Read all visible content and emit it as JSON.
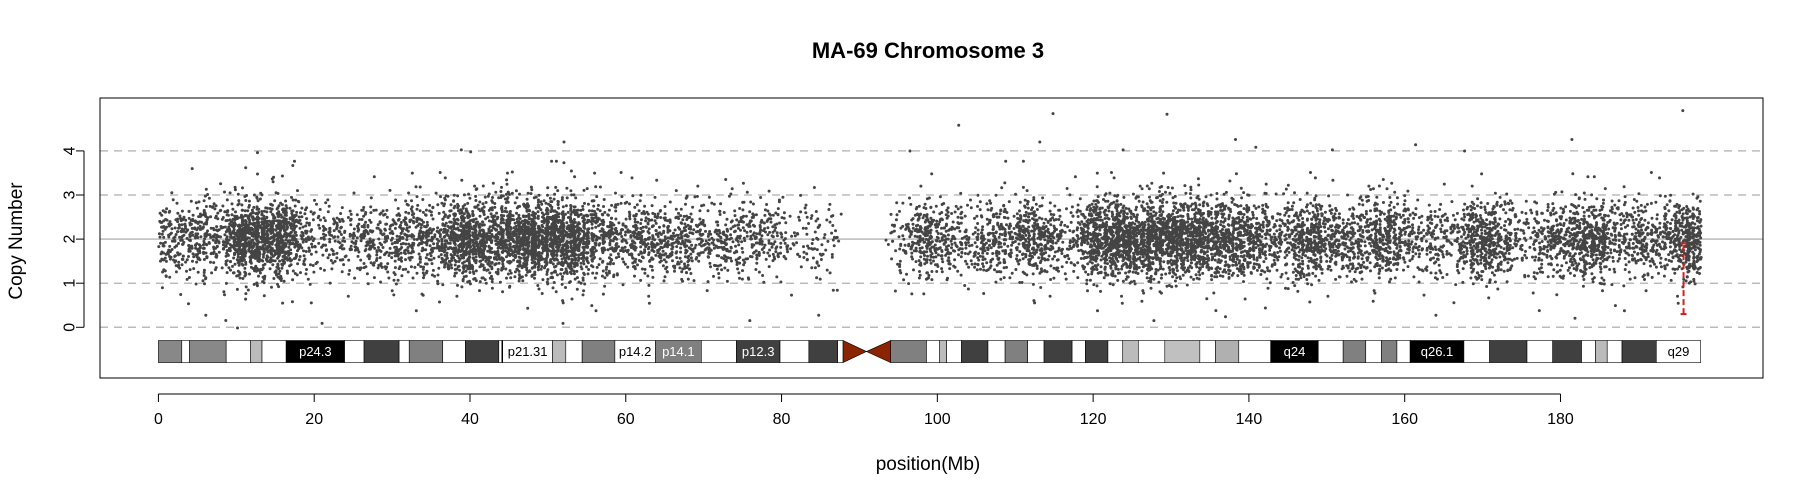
{
  "chart_data": {
    "type": "scatter",
    "title": "MA-69  Chromosome 3",
    "xlabel": "position(Mb)",
    "ylabel": "Copy Number",
    "xlim": [
      -7.5,
      206
    ],
    "ylim": [
      -1.15,
      5.2
    ],
    "x_ticks": [
      0,
      20,
      40,
      60,
      80,
      100,
      120,
      140,
      160,
      180
    ],
    "y_ticks": [
      0,
      1,
      2,
      3,
      4
    ],
    "dashed_gridlines_y": [
      0,
      1,
      3,
      4
    ],
    "solid_gridline_y": 2,
    "point_color": "#444444",
    "segment": {
      "color": "#cc2222",
      "x": 195.8,
      "y_from": 0.3,
      "y_to": 1.9
    },
    "density_profile_mb": [
      [
        0,
        0.3
      ],
      [
        2,
        0.4
      ],
      [
        4,
        0.35
      ],
      [
        6,
        0.5
      ],
      [
        8,
        0.3
      ],
      [
        9,
        0.6
      ],
      [
        10,
        1.0
      ],
      [
        12,
        1.1
      ],
      [
        14,
        1.2
      ],
      [
        16,
        0.9
      ],
      [
        18,
        0.4
      ],
      [
        20,
        0.2
      ],
      [
        22,
        0.3
      ],
      [
        24,
        0.2
      ],
      [
        26,
        0.4
      ],
      [
        28,
        0.35
      ],
      [
        30,
        0.3
      ],
      [
        32,
        0.4
      ],
      [
        34,
        0.6
      ],
      [
        36,
        0.3
      ],
      [
        37,
        0.9
      ],
      [
        40,
        1.1
      ],
      [
        42,
        0.8
      ],
      [
        44,
        0.9
      ],
      [
        46,
        1.1
      ],
      [
        48,
        1.3
      ],
      [
        50,
        1.3
      ],
      [
        52,
        1.5
      ],
      [
        54,
        0.9
      ],
      [
        56,
        0.6
      ],
      [
        58,
        0.5
      ],
      [
        60,
        0.3
      ],
      [
        62,
        0.5
      ],
      [
        64,
        0.5
      ],
      [
        66,
        0.4
      ],
      [
        68,
        0.5
      ],
      [
        70,
        0.3
      ],
      [
        72,
        0.3
      ],
      [
        74,
        0.3
      ],
      [
        76,
        0.35
      ],
      [
        78,
        0.2
      ],
      [
        80,
        0.2
      ],
      [
        82,
        0.1
      ],
      [
        84,
        0.15
      ],
      [
        86,
        0.15
      ],
      [
        88,
        0.0
      ],
      [
        93,
        0.0
      ],
      [
        94,
        0.1
      ],
      [
        96,
        0.2
      ],
      [
        98,
        0.5
      ],
      [
        100,
        0.6
      ],
      [
        102,
        0.3
      ],
      [
        104,
        0.2
      ],
      [
        106,
        0.3
      ],
      [
        108,
        0.5
      ],
      [
        110,
        0.3
      ],
      [
        112,
        0.8
      ],
      [
        114,
        0.5
      ],
      [
        116,
        0.2
      ],
      [
        118,
        0.3
      ],
      [
        120,
        1.0
      ],
      [
        122,
        1.1
      ],
      [
        124,
        1.1
      ],
      [
        126,
        1.1
      ],
      [
        128,
        1.1
      ],
      [
        130,
        1.0
      ],
      [
        132,
        1.0
      ],
      [
        134,
        0.9
      ],
      [
        136,
        0.8
      ],
      [
        138,
        0.7
      ],
      [
        140,
        0.8
      ],
      [
        142,
        0.5
      ],
      [
        144,
        0.3
      ],
      [
        146,
        0.6
      ],
      [
        148,
        0.7
      ],
      [
        150,
        0.7
      ],
      [
        152,
        0.4
      ],
      [
        154,
        0.5
      ],
      [
        156,
        0.6
      ],
      [
        158,
        0.6
      ],
      [
        160,
        0.4
      ],
      [
        162,
        0.2
      ],
      [
        164,
        0.4
      ],
      [
        166,
        0.2
      ],
      [
        168,
        0.5
      ],
      [
        170,
        0.7
      ],
      [
        172,
        0.6
      ],
      [
        174,
        0.3
      ],
      [
        176,
        0.2
      ],
      [
        178,
        0.4
      ],
      [
        180,
        0.6
      ],
      [
        182,
        0.6
      ],
      [
        184,
        1.0
      ],
      [
        186,
        0.5
      ],
      [
        188,
        0.3
      ],
      [
        190,
        0.5
      ],
      [
        192,
        0.3
      ],
      [
        194,
        0.5
      ],
      [
        196,
        1.0
      ],
      [
        198,
        0.6
      ]
    ],
    "ideogram": {
      "y_center": -0.55,
      "height": 0.5,
      "bands": [
        {
          "start": 0,
          "end": 3,
          "fill": "#888888",
          "label": "",
          "label_color": ""
        },
        {
          "start": 3,
          "end": 4,
          "fill": "#ffffff",
          "label": "",
          "label_color": ""
        },
        {
          "start": 4,
          "end": 8.7,
          "fill": "#888888",
          "label": "",
          "label_color": ""
        },
        {
          "start": 8.7,
          "end": 11.8,
          "fill": "#ffffff",
          "label": "",
          "label_color": ""
        },
        {
          "start": 11.8,
          "end": 13.3,
          "fill": "#bbbbbb",
          "label": "",
          "label_color": ""
        },
        {
          "start": 13.3,
          "end": 16.4,
          "fill": "#ffffff",
          "label": "",
          "label_color": ""
        },
        {
          "start": 16.4,
          "end": 23.9,
          "fill": "#000000",
          "label": "p24.3",
          "label_color": "#ffffff"
        },
        {
          "start": 23.9,
          "end": 26.4,
          "fill": "#ffffff",
          "label": "",
          "label_color": ""
        },
        {
          "start": 26.4,
          "end": 30.9,
          "fill": "#404040",
          "label": "",
          "label_color": ""
        },
        {
          "start": 30.9,
          "end": 32.2,
          "fill": "#ffffff",
          "label": "",
          "label_color": ""
        },
        {
          "start": 32.2,
          "end": 36.5,
          "fill": "#808080",
          "label": "",
          "label_color": ""
        },
        {
          "start": 36.5,
          "end": 39.4,
          "fill": "#ffffff",
          "label": "",
          "label_color": ""
        },
        {
          "start": 39.4,
          "end": 43.7,
          "fill": "#404040",
          "label": "",
          "label_color": ""
        },
        {
          "start": 43.7,
          "end": 44.1,
          "fill": "#ffffff",
          "label": "",
          "label_color": ""
        },
        {
          "start": 44.1,
          "end": 44.2,
          "fill": "#000000",
          "label": "",
          "label_color": ""
        },
        {
          "start": 44.2,
          "end": 50.6,
          "fill": "#ffffff",
          "label": "p21.31",
          "label_color": "#000000"
        },
        {
          "start": 50.6,
          "end": 52.3,
          "fill": "#bbbbbb",
          "label": "",
          "label_color": ""
        },
        {
          "start": 52.3,
          "end": 54.4,
          "fill": "#ffffff",
          "label": "",
          "label_color": ""
        },
        {
          "start": 54.4,
          "end": 58.6,
          "fill": "#808080",
          "label": "",
          "label_color": ""
        },
        {
          "start": 58.6,
          "end": 63.8,
          "fill": "#ffffff",
          "label": "p14.2",
          "label_color": "#000000"
        },
        {
          "start": 63.8,
          "end": 69.7,
          "fill": "#808080",
          "label": "p14.1",
          "label_color": "#ffffff"
        },
        {
          "start": 69.7,
          "end": 74.2,
          "fill": "#ffffff",
          "label": "",
          "label_color": ""
        },
        {
          "start": 74.2,
          "end": 79.8,
          "fill": "#404040",
          "label": "p12.3",
          "label_color": "#ffffff"
        },
        {
          "start": 79.8,
          "end": 83.5,
          "fill": "#ffffff",
          "label": "",
          "label_color": ""
        },
        {
          "start": 83.5,
          "end": 87.2,
          "fill": "#404040",
          "label": "",
          "label_color": ""
        },
        {
          "start": 87.2,
          "end": 87.9,
          "fill": "#ffffff",
          "label": "",
          "label_color": ""
        },
        {
          "start": 94.0,
          "end": 98.6,
          "fill": "#808080",
          "label": "",
          "label_color": ""
        },
        {
          "start": 98.6,
          "end": 100.3,
          "fill": "#ffffff",
          "label": "",
          "label_color": ""
        },
        {
          "start": 100.3,
          "end": 101.2,
          "fill": "#bbbbbb",
          "label": "",
          "label_color": ""
        },
        {
          "start": 101.2,
          "end": 103.1,
          "fill": "#ffffff",
          "label": "",
          "label_color": ""
        },
        {
          "start": 103.1,
          "end": 106.5,
          "fill": "#404040",
          "label": "",
          "label_color": ""
        },
        {
          "start": 106.5,
          "end": 108.7,
          "fill": "#ffffff",
          "label": "",
          "label_color": ""
        },
        {
          "start": 108.7,
          "end": 111.6,
          "fill": "#808080",
          "label": "",
          "label_color": ""
        },
        {
          "start": 111.6,
          "end": 113.7,
          "fill": "#ffffff",
          "label": "",
          "label_color": ""
        },
        {
          "start": 113.7,
          "end": 117.3,
          "fill": "#404040",
          "label": "",
          "label_color": ""
        },
        {
          "start": 117.3,
          "end": 119.0,
          "fill": "#ffffff",
          "label": "",
          "label_color": ""
        },
        {
          "start": 119.0,
          "end": 121.9,
          "fill": "#404040",
          "label": "",
          "label_color": ""
        },
        {
          "start": 121.9,
          "end": 123.8,
          "fill": "#ffffff",
          "label": "",
          "label_color": ""
        },
        {
          "start": 123.8,
          "end": 125.8,
          "fill": "#bbbbbb",
          "label": "",
          "label_color": ""
        },
        {
          "start": 125.8,
          "end": 129.2,
          "fill": "#ffffff",
          "label": "",
          "label_color": ""
        },
        {
          "start": 129.2,
          "end": 133.7,
          "fill": "#c0c0c0",
          "label": "",
          "label_color": ""
        },
        {
          "start": 133.7,
          "end": 135.7,
          "fill": "#ffffff",
          "label": "",
          "label_color": ""
        },
        {
          "start": 135.7,
          "end": 138.7,
          "fill": "#b0b0b0",
          "label": "",
          "label_color": ""
        },
        {
          "start": 138.7,
          "end": 142.8,
          "fill": "#ffffff",
          "label": "",
          "label_color": ""
        },
        {
          "start": 142.8,
          "end": 148.9,
          "fill": "#000000",
          "label": "q24",
          "label_color": "#ffffff"
        },
        {
          "start": 148.9,
          "end": 152.1,
          "fill": "#ffffff",
          "label": "",
          "label_color": ""
        },
        {
          "start": 152.1,
          "end": 155.0,
          "fill": "#808080",
          "label": "",
          "label_color": ""
        },
        {
          "start": 155.0,
          "end": 157.0,
          "fill": "#ffffff",
          "label": "",
          "label_color": ""
        },
        {
          "start": 157.0,
          "end": 159.0,
          "fill": "#808080",
          "label": "",
          "label_color": ""
        },
        {
          "start": 159.0,
          "end": 160.7,
          "fill": "#ffffff",
          "label": "",
          "label_color": ""
        },
        {
          "start": 160.7,
          "end": 167.6,
          "fill": "#000000",
          "label": "q26.1",
          "label_color": "#ffffff"
        },
        {
          "start": 167.6,
          "end": 170.9,
          "fill": "#ffffff",
          "label": "",
          "label_color": ""
        },
        {
          "start": 170.9,
          "end": 175.7,
          "fill": "#404040",
          "label": "",
          "label_color": ""
        },
        {
          "start": 175.7,
          "end": 179.0,
          "fill": "#ffffff",
          "label": "",
          "label_color": ""
        },
        {
          "start": 179.0,
          "end": 182.7,
          "fill": "#404040",
          "label": "",
          "label_color": ""
        },
        {
          "start": 182.7,
          "end": 184.5,
          "fill": "#ffffff",
          "label": "",
          "label_color": ""
        },
        {
          "start": 184.5,
          "end": 186.0,
          "fill": "#bbbbbb",
          "label": "",
          "label_color": ""
        },
        {
          "start": 186.0,
          "end": 187.9,
          "fill": "#ffffff",
          "label": "",
          "label_color": ""
        },
        {
          "start": 187.9,
          "end": 192.3,
          "fill": "#404040",
          "label": "",
          "label_color": ""
        },
        {
          "start": 192.3,
          "end": 198.0,
          "fill": "#ffffff",
          "label": "q29",
          "label_color": "#000000"
        }
      ],
      "centromere": {
        "start": 87.9,
        "end": 94.0,
        "mid": 90.9,
        "fill": "#8b2500"
      }
    }
  }
}
